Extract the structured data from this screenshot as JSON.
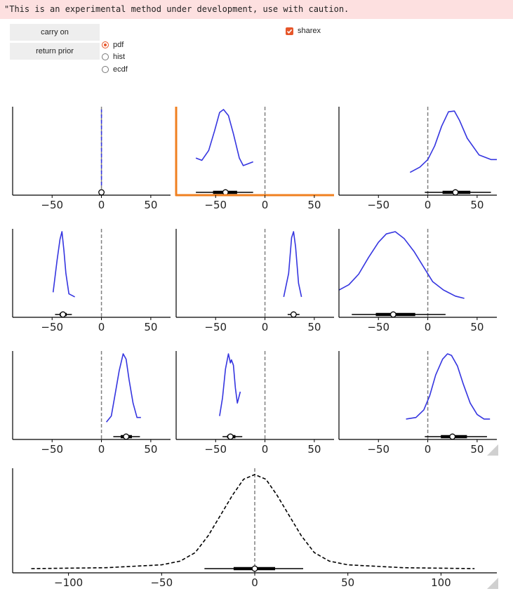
{
  "warning": "\"This is an experimental method under development, use with caution.",
  "buttons": {
    "carry_on": "carry on",
    "return_prior": "return prior"
  },
  "kind_options": [
    {
      "label": "pdf",
      "selected": true
    },
    {
      "label": "hist",
      "selected": false
    },
    {
      "label": "ecdf",
      "selected": false
    }
  ],
  "sharex": {
    "label": "sharex",
    "checked": true
  },
  "colors": {
    "accent": "#e6562a",
    "kde": "#3535e0",
    "highlight": "#f08020",
    "reference": "#808080"
  },
  "chart_data": [
    {
      "type": "line",
      "panel": 1,
      "xlim": [
        -90,
        70
      ],
      "xticks": [
        -50,
        0,
        50
      ],
      "point_estimate": 0,
      "interval": [
        0,
        0
      ],
      "x": [
        0,
        0,
        0
      ],
      "y": [
        0.0,
        0.5,
        1.0
      ]
    },
    {
      "type": "line",
      "panel": 2,
      "highlighted": true,
      "xlim": [
        -90,
        70
      ],
      "xticks": [
        -50,
        0,
        50
      ],
      "point_estimate": -40,
      "interval": [
        -70,
        -12
      ],
      "x": [
        -70,
        -64,
        -57,
        -51,
        -46,
        -42,
        -37,
        -32,
        -26,
        -22,
        -18,
        -12
      ],
      "y": [
        0.36,
        0.33,
        0.46,
        0.72,
        0.96,
        1.0,
        0.92,
        0.68,
        0.36,
        0.26,
        0.28,
        0.31
      ]
    },
    {
      "type": "line",
      "panel": 3,
      "xlim": [
        -90,
        70
      ],
      "xticks": [
        -50,
        0,
        50
      ],
      "point_estimate": 28,
      "interval": [
        -3,
        64
      ],
      "x": [
        -18,
        -8,
        0,
        7,
        14,
        21,
        27,
        32,
        40,
        52,
        64,
        70
      ],
      "y": [
        0.17,
        0.24,
        0.34,
        0.52,
        0.78,
        0.97,
        0.98,
        0.86,
        0.62,
        0.4,
        0.34,
        0.34
      ]
    },
    {
      "type": "line",
      "panel": 4,
      "xlim": [
        -90,
        70
      ],
      "xticks": [
        -50,
        0,
        50
      ],
      "point_estimate": -39,
      "interval": [
        -47,
        -30
      ],
      "x": [
        -49,
        -45,
        -42,
        -40,
        -38,
        -36,
        -33,
        -27
      ],
      "y": [
        0.2,
        0.62,
        0.9,
        1.0,
        0.75,
        0.45,
        0.18,
        0.14
      ]
    },
    {
      "type": "line",
      "panel": 5,
      "xlim": [
        -90,
        70
      ],
      "xticks": [
        -50,
        0,
        50
      ],
      "point_estimate": 29,
      "interval": [
        23,
        35
      ],
      "x": [
        19,
        24,
        27,
        29,
        31,
        34,
        37
      ],
      "y": [
        0.14,
        0.45,
        0.92,
        1.0,
        0.8,
        0.32,
        0.14
      ]
    },
    {
      "type": "line",
      "panel": 6,
      "xlim": [
        -90,
        70
      ],
      "xticks": [
        -50,
        0,
        50
      ],
      "point_estimate": -35,
      "interval": [
        -77,
        18
      ],
      "x": [
        -90,
        -80,
        -70,
        -60,
        -50,
        -42,
        -33,
        -24,
        -14,
        -4,
        5,
        16,
        28,
        37
      ],
      "y": [
        0.23,
        0.3,
        0.44,
        0.66,
        0.86,
        0.97,
        1.0,
        0.91,
        0.74,
        0.53,
        0.34,
        0.23,
        0.15,
        0.12
      ]
    },
    {
      "type": "line",
      "panel": 7,
      "xlim": [
        -90,
        70
      ],
      "xticks": [
        -50,
        0,
        50
      ],
      "point_estimate": 25,
      "interval": [
        12,
        39
      ],
      "x": [
        5,
        10,
        14,
        18,
        22,
        25,
        28,
        32,
        36,
        40
      ],
      "y": [
        0.1,
        0.18,
        0.48,
        0.78,
        1.0,
        0.93,
        0.66,
        0.35,
        0.16,
        0.16
      ]
    },
    {
      "type": "line",
      "panel": 8,
      "xlim": [
        -90,
        70
      ],
      "xticks": [
        -50,
        0,
        50
      ],
      "point_estimate": -35,
      "interval": [
        -43,
        -23
      ],
      "x": [
        -46,
        -43,
        -40,
        -37,
        -35,
        -34,
        -32,
        -30,
        -28,
        -25
      ],
      "y": [
        0.18,
        0.42,
        0.8,
        1.0,
        0.88,
        0.92,
        0.85,
        0.55,
        0.35,
        0.5
      ]
    },
    {
      "type": "line",
      "panel": 9,
      "xlim": [
        -90,
        70
      ],
      "xticks": [
        -50,
        0,
        50
      ],
      "point_estimate": 25,
      "interval": [
        -3,
        60
      ],
      "x": [
        -22,
        -12,
        -4,
        2,
        8,
        15,
        20,
        24,
        30,
        36,
        43,
        50,
        57,
        63
      ],
      "y": [
        0.14,
        0.16,
        0.26,
        0.45,
        0.72,
        0.93,
        1.0,
        0.98,
        0.84,
        0.6,
        0.35,
        0.2,
        0.14,
        0.14
      ]
    },
    {
      "type": "line",
      "panel": "prior predictive",
      "xlim": [
        -130,
        130
      ],
      "xticks": [
        -100,
        -50,
        0,
        50,
        100
      ],
      "point_estimate": 0,
      "interval": [
        -27,
        26
      ],
      "x": [
        -120,
        -80,
        -50,
        -40,
        -32,
        -25,
        -18,
        -12,
        -6,
        0,
        6,
        12,
        18,
        25,
        32,
        40,
        50,
        80,
        118
      ],
      "y": [
        0.0,
        0.01,
        0.04,
        0.08,
        0.17,
        0.35,
        0.58,
        0.78,
        0.95,
        1.0,
        0.95,
        0.78,
        0.58,
        0.35,
        0.17,
        0.08,
        0.04,
        0.01,
        0.0
      ]
    }
  ]
}
